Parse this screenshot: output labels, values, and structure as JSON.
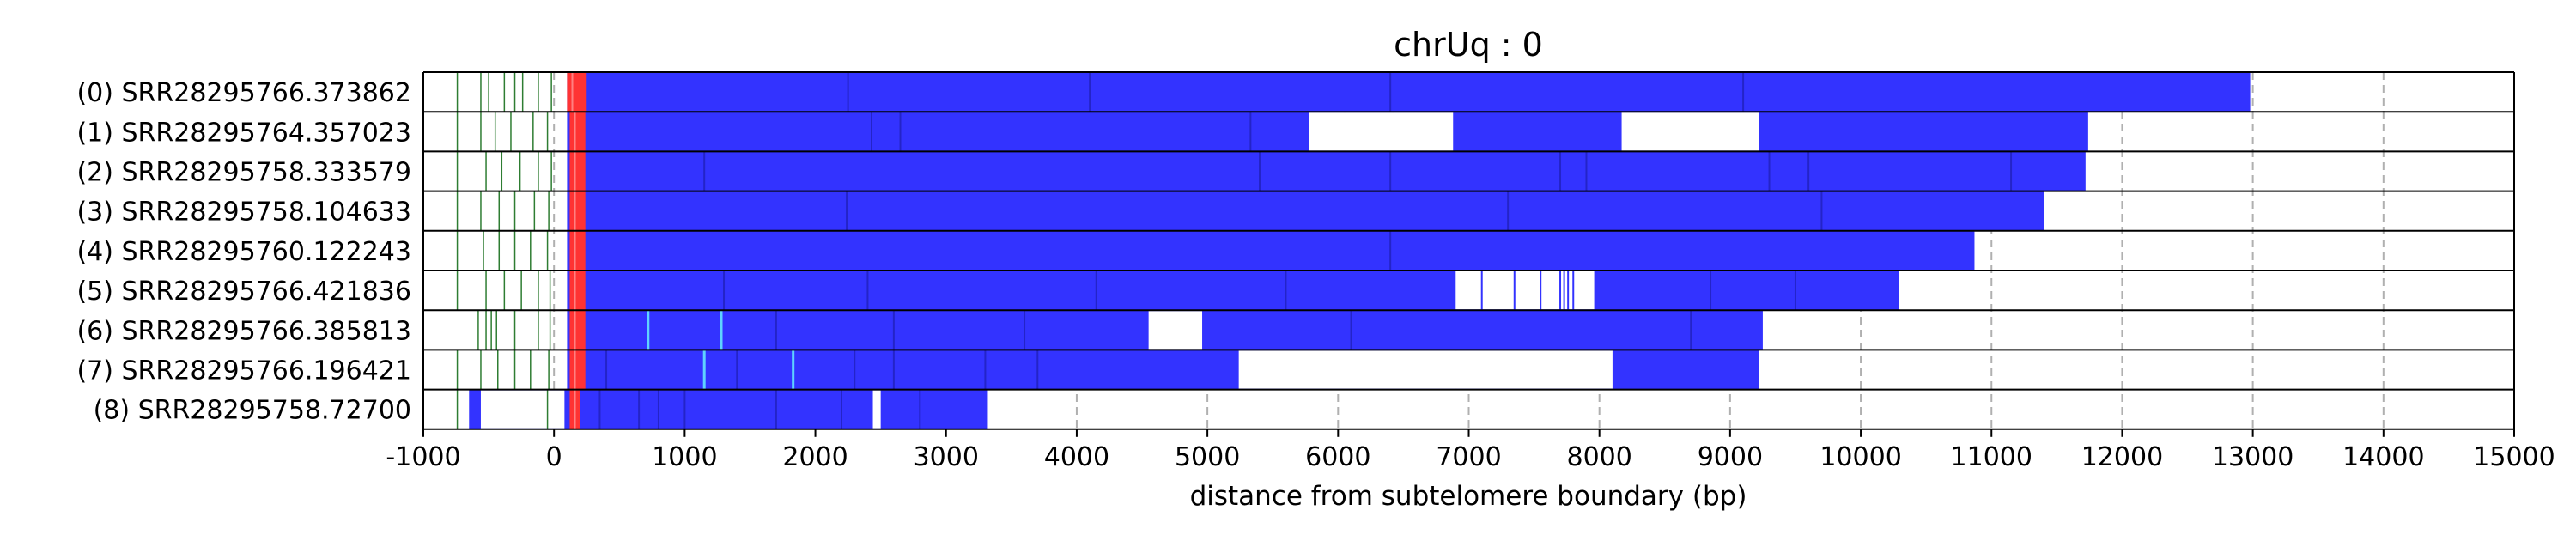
{
  "chart_data": {
    "type": "bar",
    "title": "chrUq : 0",
    "xlabel": "distance from subtelomere boundary (bp)",
    "ylabel": "",
    "xlim": [
      -1000,
      15000
    ],
    "xticks": [
      "-1000",
      "0",
      "1000",
      "2000",
      "3000",
      "4000",
      "5000",
      "6000",
      "7000",
      "8000",
      "9000",
      "10000",
      "11000",
      "12000",
      "13000",
      "14000",
      "15000"
    ],
    "grid": "x-dashed",
    "colors": {
      "repeat": "#3333ff",
      "telomere": "#ff3333",
      "marker": "#2e7d32",
      "frame": "#000000",
      "grid": "#b0b0b0"
    },
    "reads": [
      {
        "label": "(0) SRR28295766.373862",
        "start": 100,
        "end": 12980,
        "telomere": [
          100,
          250
        ],
        "gaps": [],
        "green_marks": [
          -740,
          -560,
          -500,
          -380,
          -300,
          -240,
          -120,
          -20
        ],
        "dark_lines": [
          2250,
          4100,
          6400,
          9100
        ]
      },
      {
        "label": "(1) SRR28295764.357023",
        "start": 100,
        "end": 11740,
        "telomere": [
          120,
          240
        ],
        "gaps": [
          [
            5780,
            6880
          ],
          [
            8170,
            9220
          ]
        ],
        "green_marks": [
          -740,
          -560,
          -450,
          -330,
          -160,
          -50
        ],
        "dark_lines": [
          2430,
          2650,
          5330,
          6050,
          6420
        ]
      },
      {
        "label": "(2) SRR28295758.333579",
        "start": 100,
        "end": 11720,
        "telomere": [
          120,
          240
        ],
        "gaps": [],
        "green_marks": [
          -740,
          -520,
          -400,
          -260,
          -120,
          -20
        ],
        "dark_lines": [
          1150,
          5400,
          6400,
          7700,
          7900,
          9300,
          9600,
          11150
        ]
      },
      {
        "label": "(3) SRR28295758.104633",
        "start": 100,
        "end": 11400,
        "telomere": [
          120,
          240
        ],
        "gaps": [],
        "green_marks": [
          -740,
          -560,
          -420,
          -300,
          -150,
          -40
        ],
        "dark_lines": [
          2240,
          7300,
          9700
        ]
      },
      {
        "label": "(4) SRR28295760.122243",
        "start": 100,
        "end": 10870,
        "telomere": [
          120,
          240
        ],
        "gaps": [],
        "green_marks": [
          -740,
          -540,
          -420,
          -300,
          -180,
          -50
        ],
        "dark_lines": [
          6400
        ]
      },
      {
        "label": "(5) SRR28295766.421836",
        "start": 100,
        "end": 10290,
        "telomere": [
          120,
          240
        ],
        "gaps": [
          [
            6900,
            7960
          ]
        ],
        "green_marks": [
          -740,
          -520,
          -380,
          -250,
          -120,
          -30
        ],
        "dark_lines": [
          1300,
          2400,
          4150,
          5600,
          8850,
          9500
        ],
        "blue_thin": [
          7100,
          7350,
          7550,
          7700,
          7730,
          7760,
          7800
        ]
      },
      {
        "label": "(6) SRR28295766.385813",
        "start": 100,
        "end": 9250,
        "telomere": [
          120,
          240
        ],
        "gaps": [
          [
            4550,
            4960
          ]
        ],
        "green_marks": [
          -580,
          -520,
          -480,
          -440,
          -300,
          -120,
          -30
        ],
        "cyan_marks": [
          720,
          1280
        ],
        "dark_lines": [
          1700,
          2600,
          3600,
          6100,
          8700
        ]
      },
      {
        "label": "(7) SRR28295766.196421",
        "start": 100,
        "end": 9220,
        "telomere": [
          120,
          240
        ],
        "gaps": [
          [
            5240,
            8100
          ]
        ],
        "green_marks": [
          -740,
          -560,
          -430,
          -300,
          -180,
          -40
        ],
        "cyan_marks": [
          1150,
          1830
        ],
        "dark_lines": [
          400,
          1400,
          2300,
          2600,
          3300,
          3700,
          6900
        ]
      },
      {
        "label": "(8) SRR28295758.72700",
        "start": -650,
        "end": 3320,
        "telomere": [
          120,
          200
        ],
        "gaps": [
          [
            -560,
            80
          ],
          [
            2440,
            2500
          ]
        ],
        "green_marks": [
          -740,
          -50
        ],
        "dark_lines": [
          350,
          650,
          800,
          1000,
          1700,
          2200,
          2800
        ]
      }
    ]
  }
}
